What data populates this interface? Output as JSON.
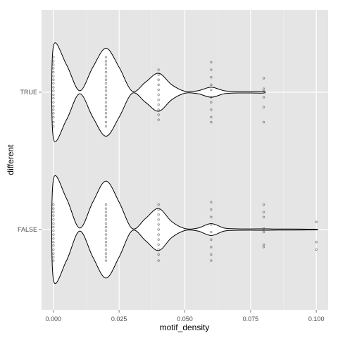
{
  "chart_data": {
    "type": "violin",
    "title": "",
    "xlabel": "motif_density",
    "ylabel": "different",
    "xlim": [
      -0.0045,
      0.1045
    ],
    "x_ticks": [
      0.0,
      0.025,
      0.05,
      0.075,
      0.1
    ],
    "x_tick_labels": [
      "0.000",
      "0.025",
      "0.050",
      "0.075",
      "0.100"
    ],
    "categories": [
      "TRUE",
      "FALSE"
    ],
    "grid": true,
    "panel_background": "#e5e5e5",
    "grid_color": "#ffffff",
    "violin_fill": "#ffffff",
    "violin_outline": "#000000",
    "point_color": "#333333",
    "series": [
      {
        "category": "TRUE",
        "density_profile": [
          [
            0.0,
            0.92
          ],
          [
            0.005,
            0.55
          ],
          [
            0.01,
            0.03
          ],
          [
            0.015,
            0.5
          ],
          [
            0.02,
            0.88
          ],
          [
            0.025,
            0.5
          ],
          [
            0.03,
            0.02
          ],
          [
            0.035,
            0.2
          ],
          [
            0.04,
            0.38
          ],
          [
            0.045,
            0.15
          ],
          [
            0.05,
            0.02
          ],
          [
            0.055,
            0.03
          ],
          [
            0.06,
            0.1
          ],
          [
            0.065,
            0.03
          ],
          [
            0.07,
            0.015
          ],
          [
            0.075,
            0.015
          ],
          [
            0.08,
            0.015
          ]
        ],
        "points": [
          {
            "x": 0.0,
            "ys": [
              -0.68,
              -0.6,
              -0.5,
              -0.42,
              -0.35,
              -0.28,
              -0.2,
              -0.12,
              -0.05,
              0.03,
              0.1,
              0.18,
              0.25,
              0.32,
              0.4,
              0.48,
              0.55,
              0.62,
              0.7
            ]
          },
          {
            "x": 0.02,
            "ys": [
              -0.68,
              -0.6,
              -0.5,
              -0.42,
              -0.35,
              -0.28,
              -0.2,
              -0.12,
              -0.05,
              0.03,
              0.1,
              0.18,
              0.25,
              0.32,
              0.4,
              0.48,
              0.55,
              0.62,
              0.7
            ]
          },
          {
            "x": 0.04,
            "ys": [
              -0.55,
              -0.45,
              -0.35,
              -0.25,
              -0.15,
              -0.05,
              0.05,
              0.15,
              0.25,
              0.35,
              0.45
            ]
          },
          {
            "x": 0.06,
            "ys": [
              -0.6,
              -0.5,
              -0.35,
              -0.2,
              -0.1,
              0.05,
              0.15,
              0.3,
              0.45,
              0.6
            ]
          },
          {
            "x": 0.08,
            "ys": [
              -0.6,
              -0.3,
              -0.1,
              0.02,
              0.07,
              0.28
            ]
          }
        ]
      },
      {
        "category": "FALSE",
        "density_profile": [
          [
            0.0,
            1.0
          ],
          [
            0.005,
            0.62
          ],
          [
            0.01,
            0.03
          ],
          [
            0.015,
            0.55
          ],
          [
            0.02,
            0.97
          ],
          [
            0.025,
            0.55
          ],
          [
            0.03,
            0.02
          ],
          [
            0.035,
            0.22
          ],
          [
            0.04,
            0.42
          ],
          [
            0.045,
            0.16
          ],
          [
            0.05,
            0.02
          ],
          [
            0.055,
            0.03
          ],
          [
            0.06,
            0.12
          ],
          [
            0.065,
            0.03
          ],
          [
            0.07,
            0.015
          ],
          [
            0.075,
            0.012
          ],
          [
            0.08,
            0.015
          ],
          [
            0.085,
            0.01
          ],
          [
            0.09,
            0.01
          ],
          [
            0.095,
            0.008
          ],
          [
            0.1,
            0.006
          ]
        ],
        "points": [
          {
            "x": 0.0,
            "ys": [
              -0.62,
              -0.55,
              -0.48,
              -0.4,
              -0.32,
              -0.25,
              -0.18,
              -0.1,
              -0.02,
              0.05,
              0.12,
              0.2,
              0.28,
              0.35,
              0.42,
              0.5
            ]
          },
          {
            "x": 0.02,
            "ys": [
              -0.62,
              -0.55,
              -0.48,
              -0.4,
              -0.32,
              -0.25,
              -0.18,
              -0.1,
              -0.02,
              0.05,
              0.12,
              0.2,
              0.28,
              0.35,
              0.42,
              0.5
            ]
          },
          {
            "x": 0.04,
            "ys": [
              -0.62,
              -0.5,
              -0.4,
              -0.3,
              -0.2,
              -0.1,
              0.0,
              0.1,
              0.2,
              0.3,
              0.4,
              0.5
            ]
          },
          {
            "x": 0.06,
            "ys": [
              -0.62,
              -0.5,
              -0.35,
              -0.2,
              -0.05,
              0.1,
              0.25,
              0.4,
              0.55
            ]
          },
          {
            "x": 0.08,
            "ys": [
              -0.35,
              -0.3,
              -0.05,
              0.02,
              0.25,
              0.35,
              0.5
            ]
          },
          {
            "x": 0.1,
            "ys": [
              -0.4,
              -0.25,
              0.15
            ]
          }
        ]
      }
    ]
  }
}
